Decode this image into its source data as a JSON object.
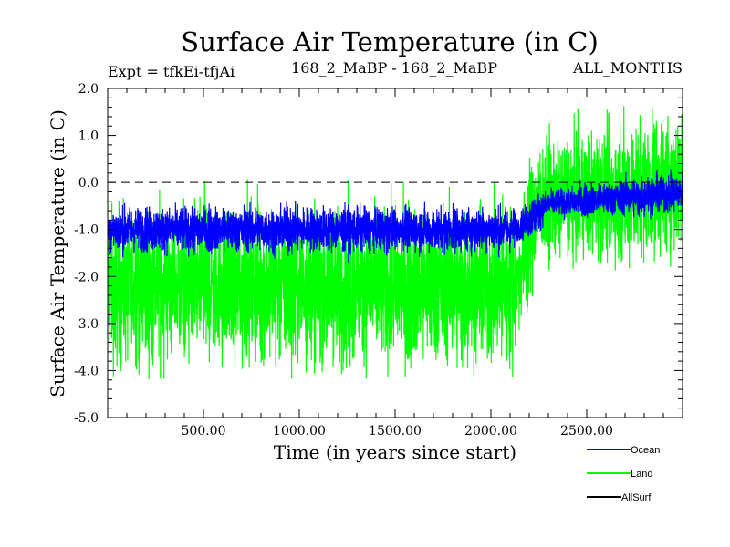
{
  "chart_data": {
    "type": "line",
    "title": "Surface Air Temperature (in C)",
    "subtitle_left": "Expt = tfkEi-tfjAi",
    "subtitle_center": "168_2_MaBP - 168_2_MaBP",
    "subtitle_right": "ALL_MONTHS",
    "xlabel": "Time (in years since start)",
    "ylabel": "Surface Air Temperature (in C)",
    "xlim": [
      0,
      3000
    ],
    "ylim": [
      -5.0,
      2.0
    ],
    "x_ticks": [
      500,
      1000,
      1500,
      2000,
      2500
    ],
    "x_tick_labels": [
      "500.00",
      "1000.00",
      "1500.00",
      "2000.00",
      "2500.00"
    ],
    "y_ticks": [
      2.0,
      1.0,
      0.0,
      -1.0,
      -2.0,
      -3.0,
      -4.0,
      -5.0
    ],
    "y_tick_labels": [
      "2.0",
      "1.0",
      "0.0",
      "-1.0",
      "-2.0",
      "-3.0",
      "-4.0",
      "-5.0"
    ],
    "reference_line": {
      "y": 0.0,
      "style": "dashed"
    },
    "legend_placement": "below-right",
    "series": [
      {
        "name": "Land",
        "color": "#00ff00",
        "segments": [
          {
            "x_start": 0,
            "x_end": 2130,
            "mean": -2.2,
            "min": -4.2,
            "max": 0.1
          },
          {
            "x_start": 2130,
            "x_end": 2250,
            "mean_start": -2.2,
            "mean_end": -0.4,
            "min": -3.2,
            "max": 0.8
          },
          {
            "x_start": 2250,
            "x_end": 3000,
            "mean_start": -0.4,
            "mean_end": 0.0,
            "min": -1.9,
            "max": 1.8
          }
        ]
      },
      {
        "name": "Ocean",
        "color": "#0000ff",
        "segments": [
          {
            "x_start": 0,
            "x_end": 2130,
            "mean": -1.0,
            "min": -1.7,
            "max": -0.4
          },
          {
            "x_start": 2130,
            "x_end": 2300,
            "mean_start": -1.0,
            "mean_end": -0.45,
            "min": -1.3,
            "max": -0.1
          },
          {
            "x_start": 2300,
            "x_end": 3000,
            "mean_start": -0.45,
            "mean_end": -0.2,
            "min": -0.8,
            "max": 0.3
          }
        ]
      },
      {
        "name": "AllSurf",
        "color": "#000000",
        "segments": []
      }
    ]
  }
}
